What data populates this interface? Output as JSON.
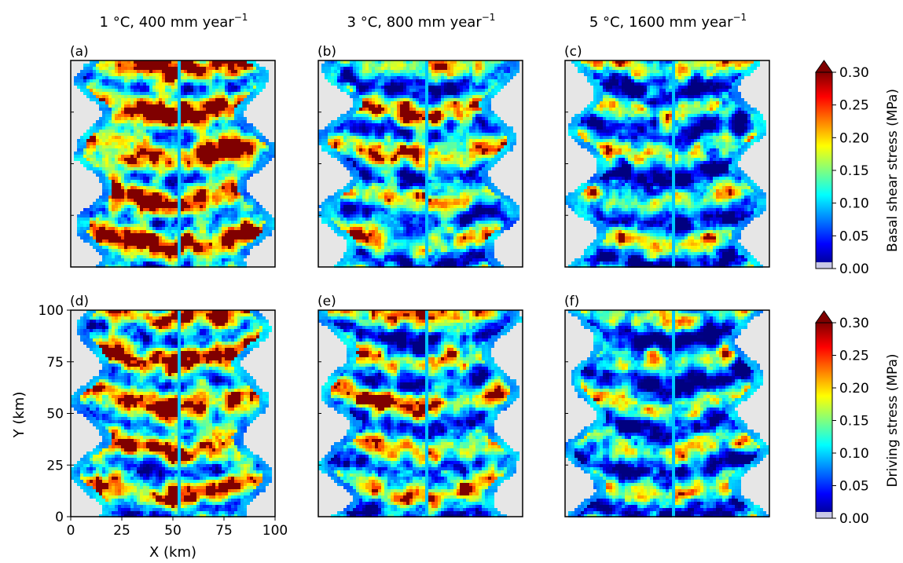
{
  "chart_data": {
    "type": "heatmap",
    "columns": [
      {
        "temperature": "1 °C, 400 mm year",
        "exponent": "−1"
      },
      {
        "temperature": "3 °C, 800 mm year",
        "exponent": "−1"
      },
      {
        "temperature": "5 °C, 1600 mm year",
        "exponent": "−1"
      }
    ],
    "panels": [
      {
        "label": "(a)",
        "row": 0,
        "col": 0
      },
      {
        "label": "(b)",
        "row": 0,
        "col": 1
      },
      {
        "label": "(c)",
        "row": 0,
        "col": 2
      },
      {
        "label": "(d)",
        "row": 1,
        "col": 0
      },
      {
        "label": "(e)",
        "row": 1,
        "col": 1
      },
      {
        "label": "(f)",
        "row": 1,
        "col": 2
      }
    ],
    "xlabel": "X (km)",
    "ylabel": "Y (km)",
    "xlim": [
      0,
      100
    ],
    "ylim": [
      0,
      100
    ],
    "xticks": [
      "0",
      "25",
      "50",
      "75",
      "100"
    ],
    "yticks": [
      "0",
      "25",
      "50",
      "75",
      "100"
    ],
    "colorbars": [
      {
        "label": "Basal shear stress (MPa)",
        "ticks": [
          "0.00",
          "0.05",
          "0.10",
          "0.15",
          "0.20",
          "0.25",
          "0.30"
        ],
        "range": [
          0,
          0.3
        ],
        "extend": "max"
      },
      {
        "label": "Driving stress (MPa)",
        "ticks": [
          "0.00",
          "0.05",
          "0.10",
          "0.15",
          "0.20",
          "0.25",
          "0.30"
        ],
        "range": [
          0,
          0.3
        ],
        "extend": "max"
      }
    ],
    "colormap": "jet",
    "background_color": "#e6e6e6"
  }
}
